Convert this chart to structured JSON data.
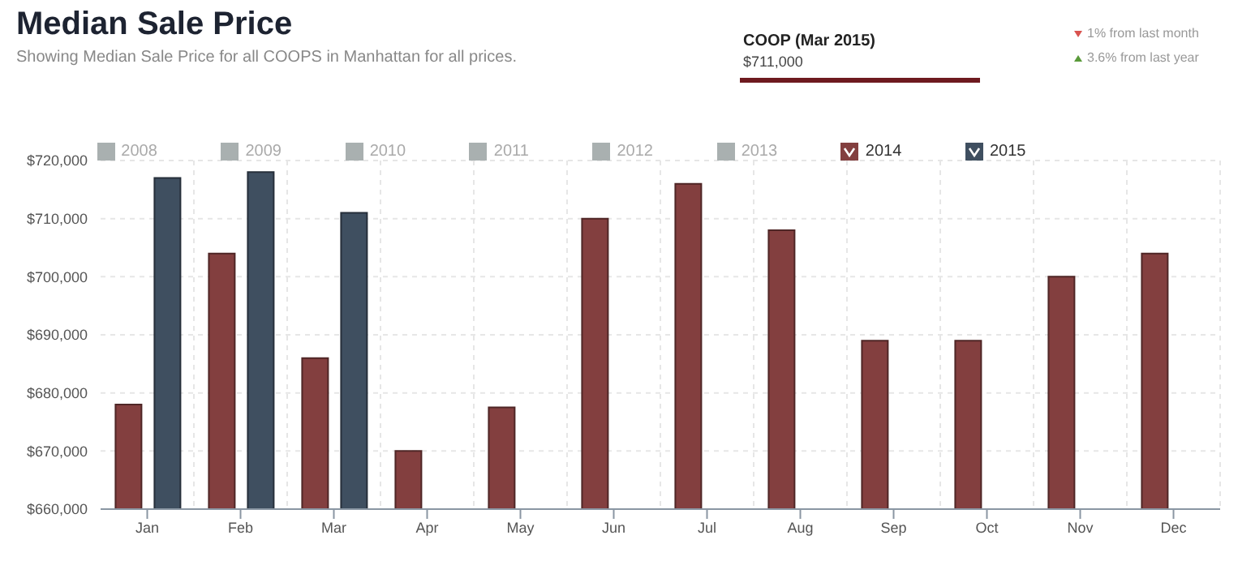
{
  "chart_data": {
    "type": "bar",
    "title": "Median Sale Price",
    "subtitle": "Showing Median Sale Price for all COOPS in Manhattan for all prices.",
    "annotations": [
      "COOP  (Mar 2015)",
      "$711,000",
      "1% from last month",
      "3.6% from last year"
    ],
    "categories": [
      "Jan",
      "Feb",
      "Mar",
      "Apr",
      "May",
      "Jun",
      "Jul",
      "Aug",
      "Sep",
      "Oct",
      "Nov",
      "Dec"
    ],
    "series": [
      {
        "name": "2008",
        "color": "#a9b0b0",
        "values": [
          null,
          null,
          null,
          null,
          null,
          null,
          null,
          null,
          null,
          null,
          null,
          null
        ]
      },
      {
        "name": "2009",
        "color": "#a9b0b0",
        "values": [
          null,
          null,
          null,
          null,
          null,
          null,
          null,
          null,
          null,
          null,
          null,
          null
        ]
      },
      {
        "name": "2010",
        "color": "#a9b0b0",
        "values": [
          null,
          null,
          null,
          null,
          null,
          null,
          null,
          null,
          null,
          null,
          null,
          null
        ]
      },
      {
        "name": "2011",
        "color": "#a9b0b0",
        "values": [
          null,
          null,
          null,
          null,
          null,
          null,
          null,
          null,
          null,
          null,
          null,
          null
        ]
      },
      {
        "name": "2012",
        "color": "#a9b0b0",
        "values": [
          null,
          null,
          null,
          null,
          null,
          null,
          null,
          null,
          null,
          null,
          null,
          null
        ]
      },
      {
        "name": "2013",
        "color": "#a9b0b0",
        "values": [
          null,
          null,
          null,
          null,
          null,
          null,
          null,
          null,
          null,
          null,
          null,
          null
        ]
      },
      {
        "name": "2014",
        "color": "#833f3f",
        "values": [
          678000,
          704000,
          686000,
          670000,
          677500,
          710000,
          716000,
          708000,
          689000,
          689000,
          700000,
          704000
        ]
      },
      {
        "name": "2015",
        "color": "#3f4f60",
        "values": [
          717000,
          718000,
          711000,
          null,
          null,
          null,
          null,
          null,
          null,
          null,
          null,
          null
        ]
      }
    ],
    "ylim": [
      660000,
      720000
    ],
    "yticks": [
      {
        "value": 660000,
        "label": "$660,000"
      },
      {
        "value": 670000,
        "label": "$670,000"
      },
      {
        "value": 680000,
        "label": "$680,000"
      },
      {
        "value": 690000,
        "label": "$690,000"
      },
      {
        "value": 700000,
        "label": "$700,000"
      },
      {
        "value": 710000,
        "label": "$710,000"
      },
      {
        "value": 720000,
        "label": "$720,000"
      }
    ],
    "grid": true,
    "legend": "top"
  }
}
